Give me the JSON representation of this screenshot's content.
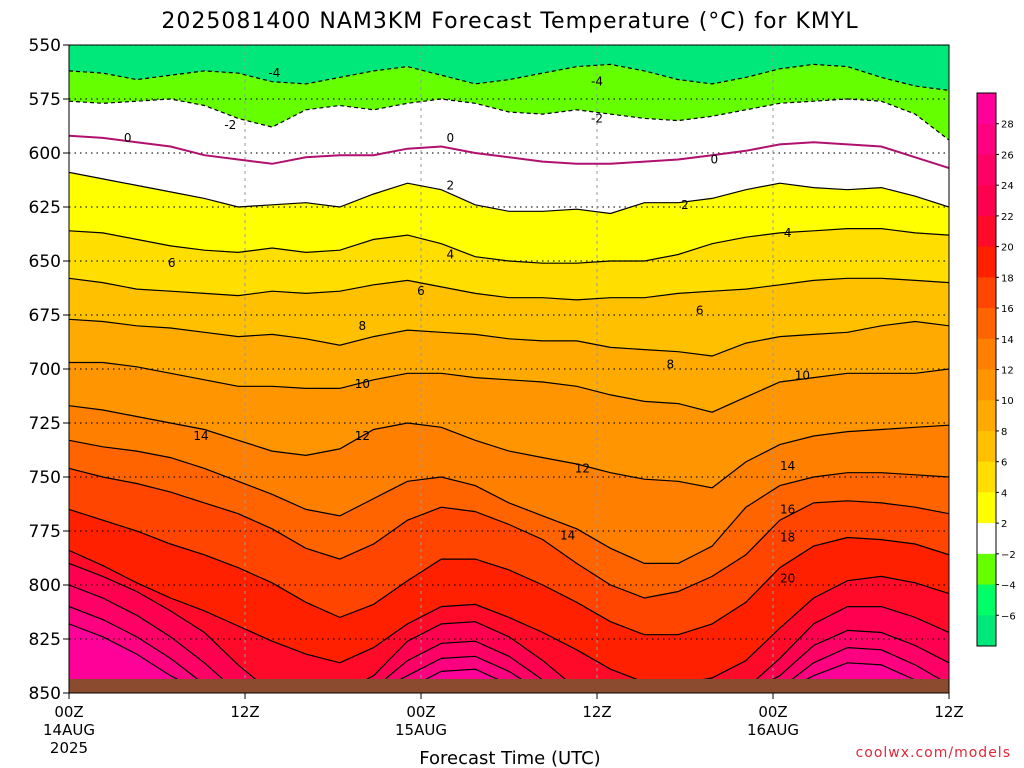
{
  "title": "2025081400 NAM3KM Forecast Temperature (°C) for KMYL",
  "credit": "coolwx.com/models",
  "colors": {
    "ground": "#8b4b2e",
    "bands": [
      {
        "min": -8,
        "max": -6,
        "color": "#00e87a"
      },
      {
        "min": -6,
        "max": -4,
        "color": "#00ff66"
      },
      {
        "min": -4,
        "max": -2,
        "color": "#66ff00"
      },
      {
        "min": -2,
        "max": 2,
        "color": "#ffffff"
      },
      {
        "min": 2,
        "max": 4,
        "color": "#ffff00"
      },
      {
        "min": 4,
        "max": 6,
        "color": "#ffde00"
      },
      {
        "min": 6,
        "max": 8,
        "color": "#ffc000"
      },
      {
        "min": 8,
        "max": 10,
        "color": "#ffaa00"
      },
      {
        "min": 10,
        "max": 12,
        "color": "#ff9500"
      },
      {
        "min": 12,
        "max": 14,
        "color": "#ff7f00"
      },
      {
        "min": 14,
        "max": 16,
        "color": "#ff6400"
      },
      {
        "min": 16,
        "max": 18,
        "color": "#ff4500"
      },
      {
        "min": 18,
        "max": 20,
        "color": "#ff2000"
      },
      {
        "min": 20,
        "max": 22,
        "color": "#ff0a28"
      },
      {
        "min": 22,
        "max": 24,
        "color": "#ff0050"
      },
      {
        "min": 24,
        "max": 26,
        "color": "#ff0066"
      },
      {
        "min": 26,
        "max": 28,
        "color": "#ff0080"
      },
      {
        "min": 28,
        "max": 30,
        "color": "#ff0099"
      }
    ]
  },
  "chart_data": {
    "type": "contour",
    "title": "2025081400 NAM3KM Forecast Temperature (°C) for KMYL",
    "xlabel": "Forecast Time (UTC)",
    "ylabel": "",
    "x_range_hours": [
      0,
      60
    ],
    "y_range_hpa": [
      850,
      550
    ],
    "y_ticks": [
      "550",
      "575",
      "600",
      "625",
      "650",
      "675",
      "700",
      "725",
      "750",
      "775",
      "800",
      "825",
      "850"
    ],
    "x_ticks": [
      {
        "hour": 0,
        "label": "00Z",
        "date": "14AUG",
        "year": "2025"
      },
      {
        "hour": 12,
        "label": "12Z",
        "date": "",
        "year": ""
      },
      {
        "hour": 24,
        "label": "00Z",
        "date": "15AUG",
        "year": ""
      },
      {
        "hour": 36,
        "label": "12Z",
        "date": "",
        "year": ""
      },
      {
        "hour": 48,
        "label": "00Z",
        "date": "16AUG",
        "year": ""
      },
      {
        "hour": 60,
        "label": "12Z",
        "date": "",
        "year": ""
      }
    ],
    "colorbar_ticks": [
      "28",
      "26",
      "24",
      "22",
      "20",
      "18",
      "16",
      "14",
      "12",
      "10",
      "8",
      "6",
      "4",
      "2",
      "−2",
      "−4",
      "−6"
    ],
    "isotherms": [
      {
        "level": -4,
        "hpa": [
          562,
          563,
          566,
          564,
          562,
          563,
          567,
          568,
          565,
          562,
          560,
          564,
          568,
          566,
          563,
          560,
          559,
          562,
          566,
          568,
          565,
          561,
          559,
          560,
          565,
          569,
          571
        ]
      },
      {
        "level": -2,
        "hpa": [
          576,
          577,
          576,
          575,
          578,
          584,
          588,
          580,
          578,
          580,
          577,
          575,
          577,
          581,
          582,
          580,
          582,
          584,
          585,
          583,
          580,
          577,
          576,
          575,
          576,
          582,
          594
        ]
      },
      {
        "level": 0,
        "hpa": [
          592,
          593,
          595,
          597,
          601,
          603,
          605,
          602,
          601,
          601,
          598,
          597,
          600,
          602,
          604,
          605,
          605,
          604,
          603,
          601,
          599,
          596,
          595,
          596,
          597,
          602,
          607
        ]
      },
      {
        "level": 2,
        "hpa": [
          609,
          612,
          615,
          618,
          621,
          625,
          624,
          623,
          625,
          619,
          614,
          617,
          624,
          627,
          627,
          626,
          628,
          623,
          623,
          621,
          617,
          614,
          616,
          617,
          616,
          620,
          625
        ]
      },
      {
        "level": 4,
        "hpa": [
          636,
          637,
          640,
          643,
          645,
          646,
          644,
          646,
          645,
          640,
          638,
          642,
          648,
          650,
          651,
          651,
          650,
          650,
          647,
          642,
          639,
          637,
          636,
          635,
          635,
          637,
          638
        ]
      },
      {
        "level": 6,
        "hpa": [
          658,
          660,
          663,
          664,
          665,
          666,
          664,
          665,
          664,
          661,
          659,
          662,
          665,
          667,
          667,
          668,
          667,
          667,
          665,
          664,
          663,
          661,
          659,
          658,
          658,
          659,
          660
        ]
      },
      {
        "level": 8,
        "hpa": [
          677,
          678,
          680,
          681,
          683,
          685,
          684,
          686,
          689,
          685,
          682,
          683,
          684,
          686,
          687,
          687,
          690,
          691,
          692,
          694,
          688,
          685,
          684,
          683,
          680,
          678,
          680
        ]
      },
      {
        "level": 10,
        "hpa": [
          697,
          697,
          699,
          702,
          705,
          708,
          708,
          709,
          709,
          705,
          702,
          702,
          704,
          705,
          706,
          708,
          712,
          715,
          716,
          720,
          713,
          706,
          704,
          702,
          702,
          702,
          700
        ]
      },
      {
        "level": 12,
        "hpa": [
          717,
          719,
          722,
          725,
          728,
          733,
          738,
          740,
          737,
          728,
          725,
          727,
          733,
          738,
          741,
          744,
          748,
          751,
          752,
          755,
          743,
          735,
          731,
          729,
          728,
          727,
          726
        ]
      },
      {
        "level": 14,
        "hpa": [
          733,
          736,
          738,
          741,
          746,
          752,
          758,
          765,
          768,
          760,
          752,
          750,
          754,
          762,
          768,
          774,
          783,
          790,
          790,
          782,
          764,
          754,
          750,
          748,
          748,
          749,
          750
        ]
      },
      {
        "level": 16,
        "hpa": [
          746,
          750,
          753,
          757,
          762,
          767,
          774,
          783,
          788,
          781,
          770,
          764,
          766,
          772,
          779,
          790,
          800,
          806,
          803,
          796,
          786,
          770,
          762,
          761,
          762,
          764,
          767
        ]
      },
      {
        "level": 18,
        "hpa": [
          765,
          770,
          775,
          781,
          786,
          792,
          799,
          808,
          815,
          809,
          798,
          788,
          788,
          793,
          800,
          808,
          817,
          823,
          823,
          818,
          808,
          792,
          782,
          778,
          779,
          781,
          786
        ]
      },
      {
        "level": 20,
        "hpa": [
          784,
          791,
          799,
          806,
          812,
          819,
          826,
          832,
          836,
          829,
          818,
          810,
          809,
          815,
          822,
          830,
          839,
          845,
          846,
          843,
          835,
          820,
          806,
          798,
          796,
          799,
          804
        ]
      },
      {
        "level": 22,
        "hpa": [
          790,
          796,
          803,
          812,
          822,
          837,
          850,
          850,
          850,
          842,
          826,
          818,
          817,
          824,
          835,
          848,
          850,
          850,
          850,
          850,
          848,
          834,
          818,
          810,
          810,
          815,
          822
        ]
      },
      {
        "level": 24,
        "hpa": [
          800,
          806,
          814,
          824,
          836,
          850,
          850,
          850,
          850,
          848,
          835,
          827,
          826,
          833,
          844,
          850,
          850,
          850,
          850,
          850,
          850,
          842,
          828,
          821,
          822,
          828,
          836
        ]
      },
      {
        "level": 26,
        "hpa": [
          810,
          816,
          824,
          834,
          846,
          850,
          850,
          850,
          850,
          850,
          842,
          834,
          833,
          840,
          850,
          850,
          850,
          850,
          850,
          850,
          850,
          848,
          836,
          829,
          830,
          837,
          846
        ]
      },
      {
        "level": 28,
        "hpa": [
          818,
          824,
          832,
          842,
          850,
          850,
          850,
          850,
          850,
          850,
          848,
          840,
          839,
          846,
          850,
          850,
          850,
          850,
          850,
          850,
          850,
          850,
          842,
          836,
          837,
          844,
          850
        ]
      }
    ],
    "contour_labels": [
      {
        "text": "-4",
        "hour": 14,
        "hpa": 563
      },
      {
        "text": "-4",
        "hour": 36,
        "hpa": 567
      },
      {
        "text": "-2",
        "hour": 11,
        "hpa": 587
      },
      {
        "text": "-2",
        "hour": 36,
        "hpa": 584
      },
      {
        "text": "0",
        "hour": 4,
        "hpa": 593
      },
      {
        "text": "0",
        "hour": 26,
        "hpa": 593
      },
      {
        "text": "0",
        "hour": 44,
        "hpa": 603
      },
      {
        "text": "2",
        "hour": 26,
        "hpa": 615
      },
      {
        "text": "2",
        "hour": 42,
        "hpa": 624
      },
      {
        "text": "4",
        "hour": 26,
        "hpa": 647
      },
      {
        "text": "4",
        "hour": 49,
        "hpa": 637
      },
      {
        "text": "6",
        "hour": 7,
        "hpa": 651
      },
      {
        "text": "6",
        "hour": 24,
        "hpa": 664
      },
      {
        "text": "6",
        "hour": 43,
        "hpa": 673
      },
      {
        "text": "8",
        "hour": 20,
        "hpa": 680
      },
      {
        "text": "8",
        "hour": 41,
        "hpa": 698
      },
      {
        "text": "10",
        "hour": 20,
        "hpa": 707
      },
      {
        "text": "10",
        "hour": 50,
        "hpa": 703
      },
      {
        "text": "12",
        "hour": 20,
        "hpa": 731
      },
      {
        "text": "12",
        "hour": 35,
        "hpa": 746
      },
      {
        "text": "14",
        "hour": 9,
        "hpa": 731
      },
      {
        "text": "14",
        "hour": 34,
        "hpa": 777
      },
      {
        "text": "14",
        "hour": 49,
        "hpa": 745
      },
      {
        "text": "16",
        "hour": 49,
        "hpa": 765
      },
      {
        "text": "18",
        "hour": 49,
        "hpa": 778
      },
      {
        "text": "20",
        "hour": 49,
        "hpa": 797
      }
    ]
  }
}
